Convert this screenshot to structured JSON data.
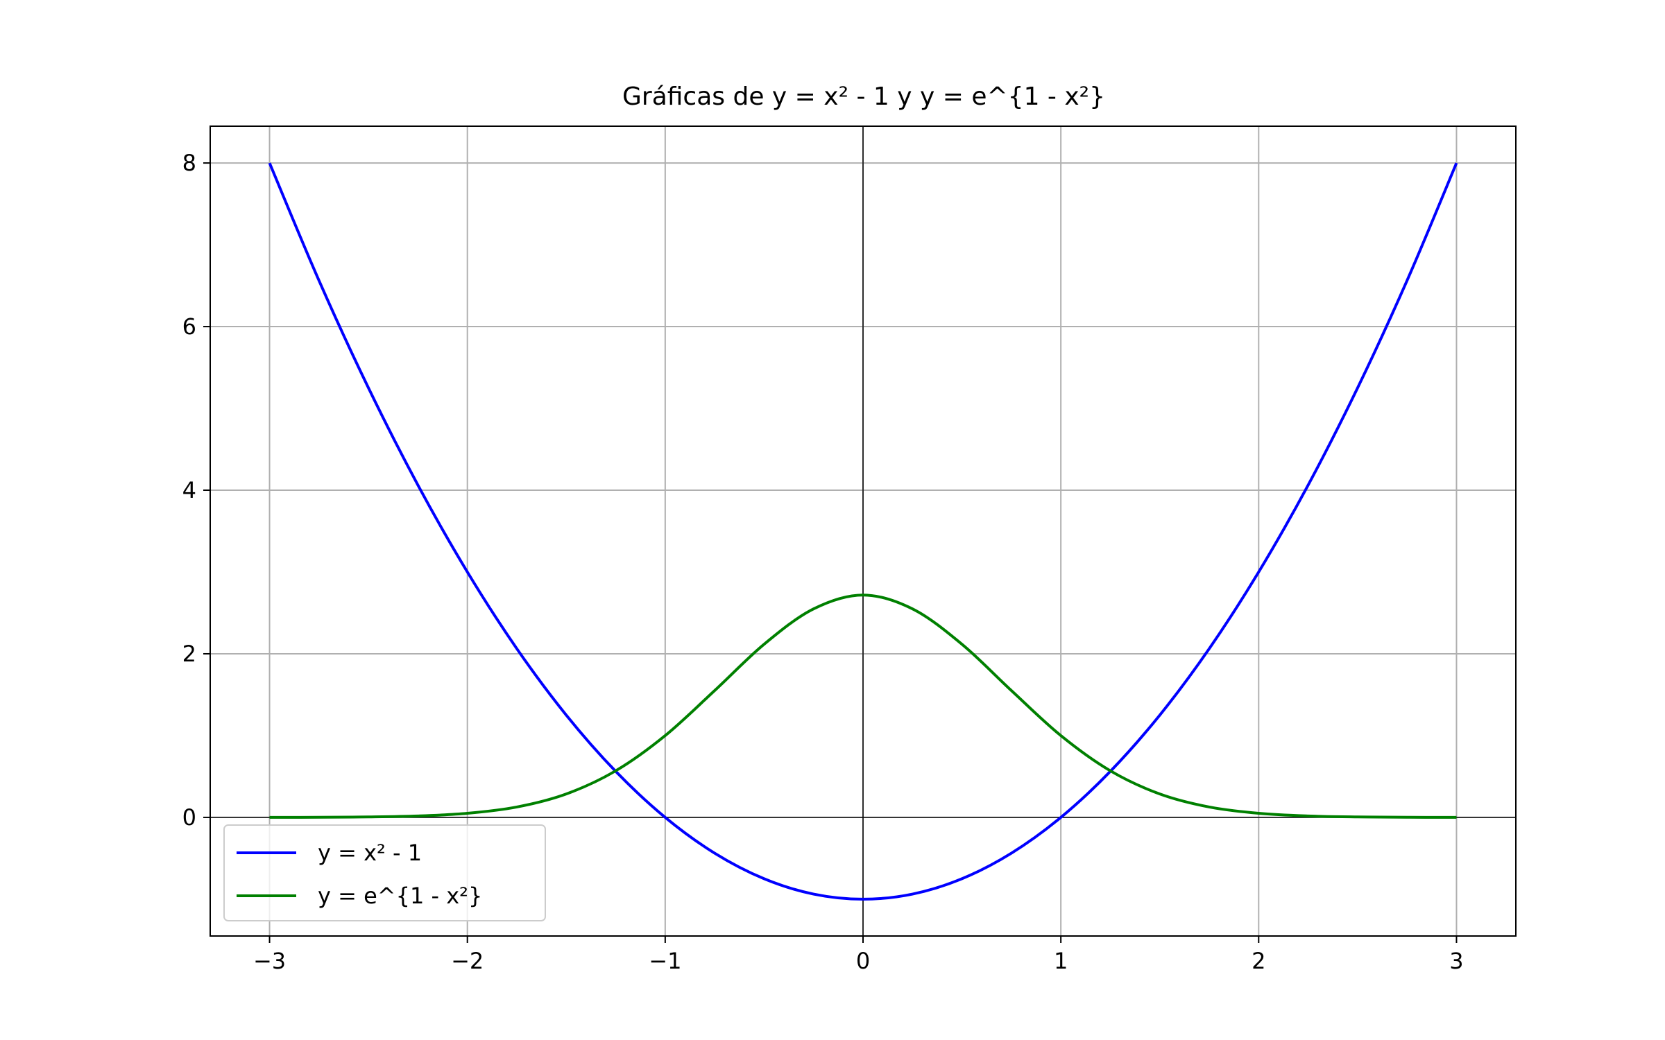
{
  "chart_data": {
    "type": "line",
    "title": "Gráficas de y = x² - 1 y y = e^{1 - x²}",
    "xlabel": "",
    "ylabel": "",
    "xlim": [
      -3.3,
      3.3
    ],
    "ylim": [
      -1.45,
      8.45
    ],
    "x_ticks": [
      -3,
      -2,
      -1,
      0,
      1,
      2,
      3
    ],
    "x_tick_labels": [
      "−3",
      "−2",
      "−1",
      "0",
      "1",
      "2",
      "3"
    ],
    "y_ticks": [
      0,
      2,
      4,
      6,
      8
    ],
    "y_tick_labels": [
      "0",
      "2",
      "4",
      "6",
      "8"
    ],
    "grid": true,
    "reference_lines": [
      {
        "axis": "x",
        "value": 0
      },
      {
        "axis": "y",
        "value": 0
      }
    ],
    "legend_position": "lower-left",
    "x": [
      -3.0,
      -2.75,
      -2.5,
      -2.25,
      -2.0,
      -1.75,
      -1.5,
      -1.25,
      -1.0,
      -0.75,
      -0.5,
      -0.25,
      0.0,
      0.25,
      0.5,
      0.75,
      1.0,
      1.25,
      1.5,
      1.75,
      2.0,
      2.25,
      2.5,
      2.75,
      3.0
    ],
    "series": [
      {
        "name": "y = x² - 1",
        "color": "#0000ff",
        "values": [
          8.0,
          6.5625,
          5.25,
          4.0625,
          3.0,
          2.0625,
          1.25,
          0.5625,
          0.0,
          -0.4375,
          -0.75,
          -0.9375,
          -1.0,
          -0.9375,
          -0.75,
          -0.4375,
          0.0,
          0.5625,
          1.25,
          2.0625,
          3.0,
          4.0625,
          5.25,
          6.5625,
          8.0
        ]
      },
      {
        "name": "y = e^{1 - x²}",
        "color": "#008000",
        "values": [
          0.0003,
          0.0014,
          0.0055,
          0.0172,
          0.0498,
          0.1268,
          0.2865,
          0.5698,
          1.0,
          1.5505,
          2.117,
          2.5488,
          2.7183,
          2.5488,
          2.117,
          1.5505,
          1.0,
          0.5698,
          0.2865,
          0.1268,
          0.0498,
          0.0172,
          0.0055,
          0.0014,
          0.0003
        ]
      }
    ]
  }
}
